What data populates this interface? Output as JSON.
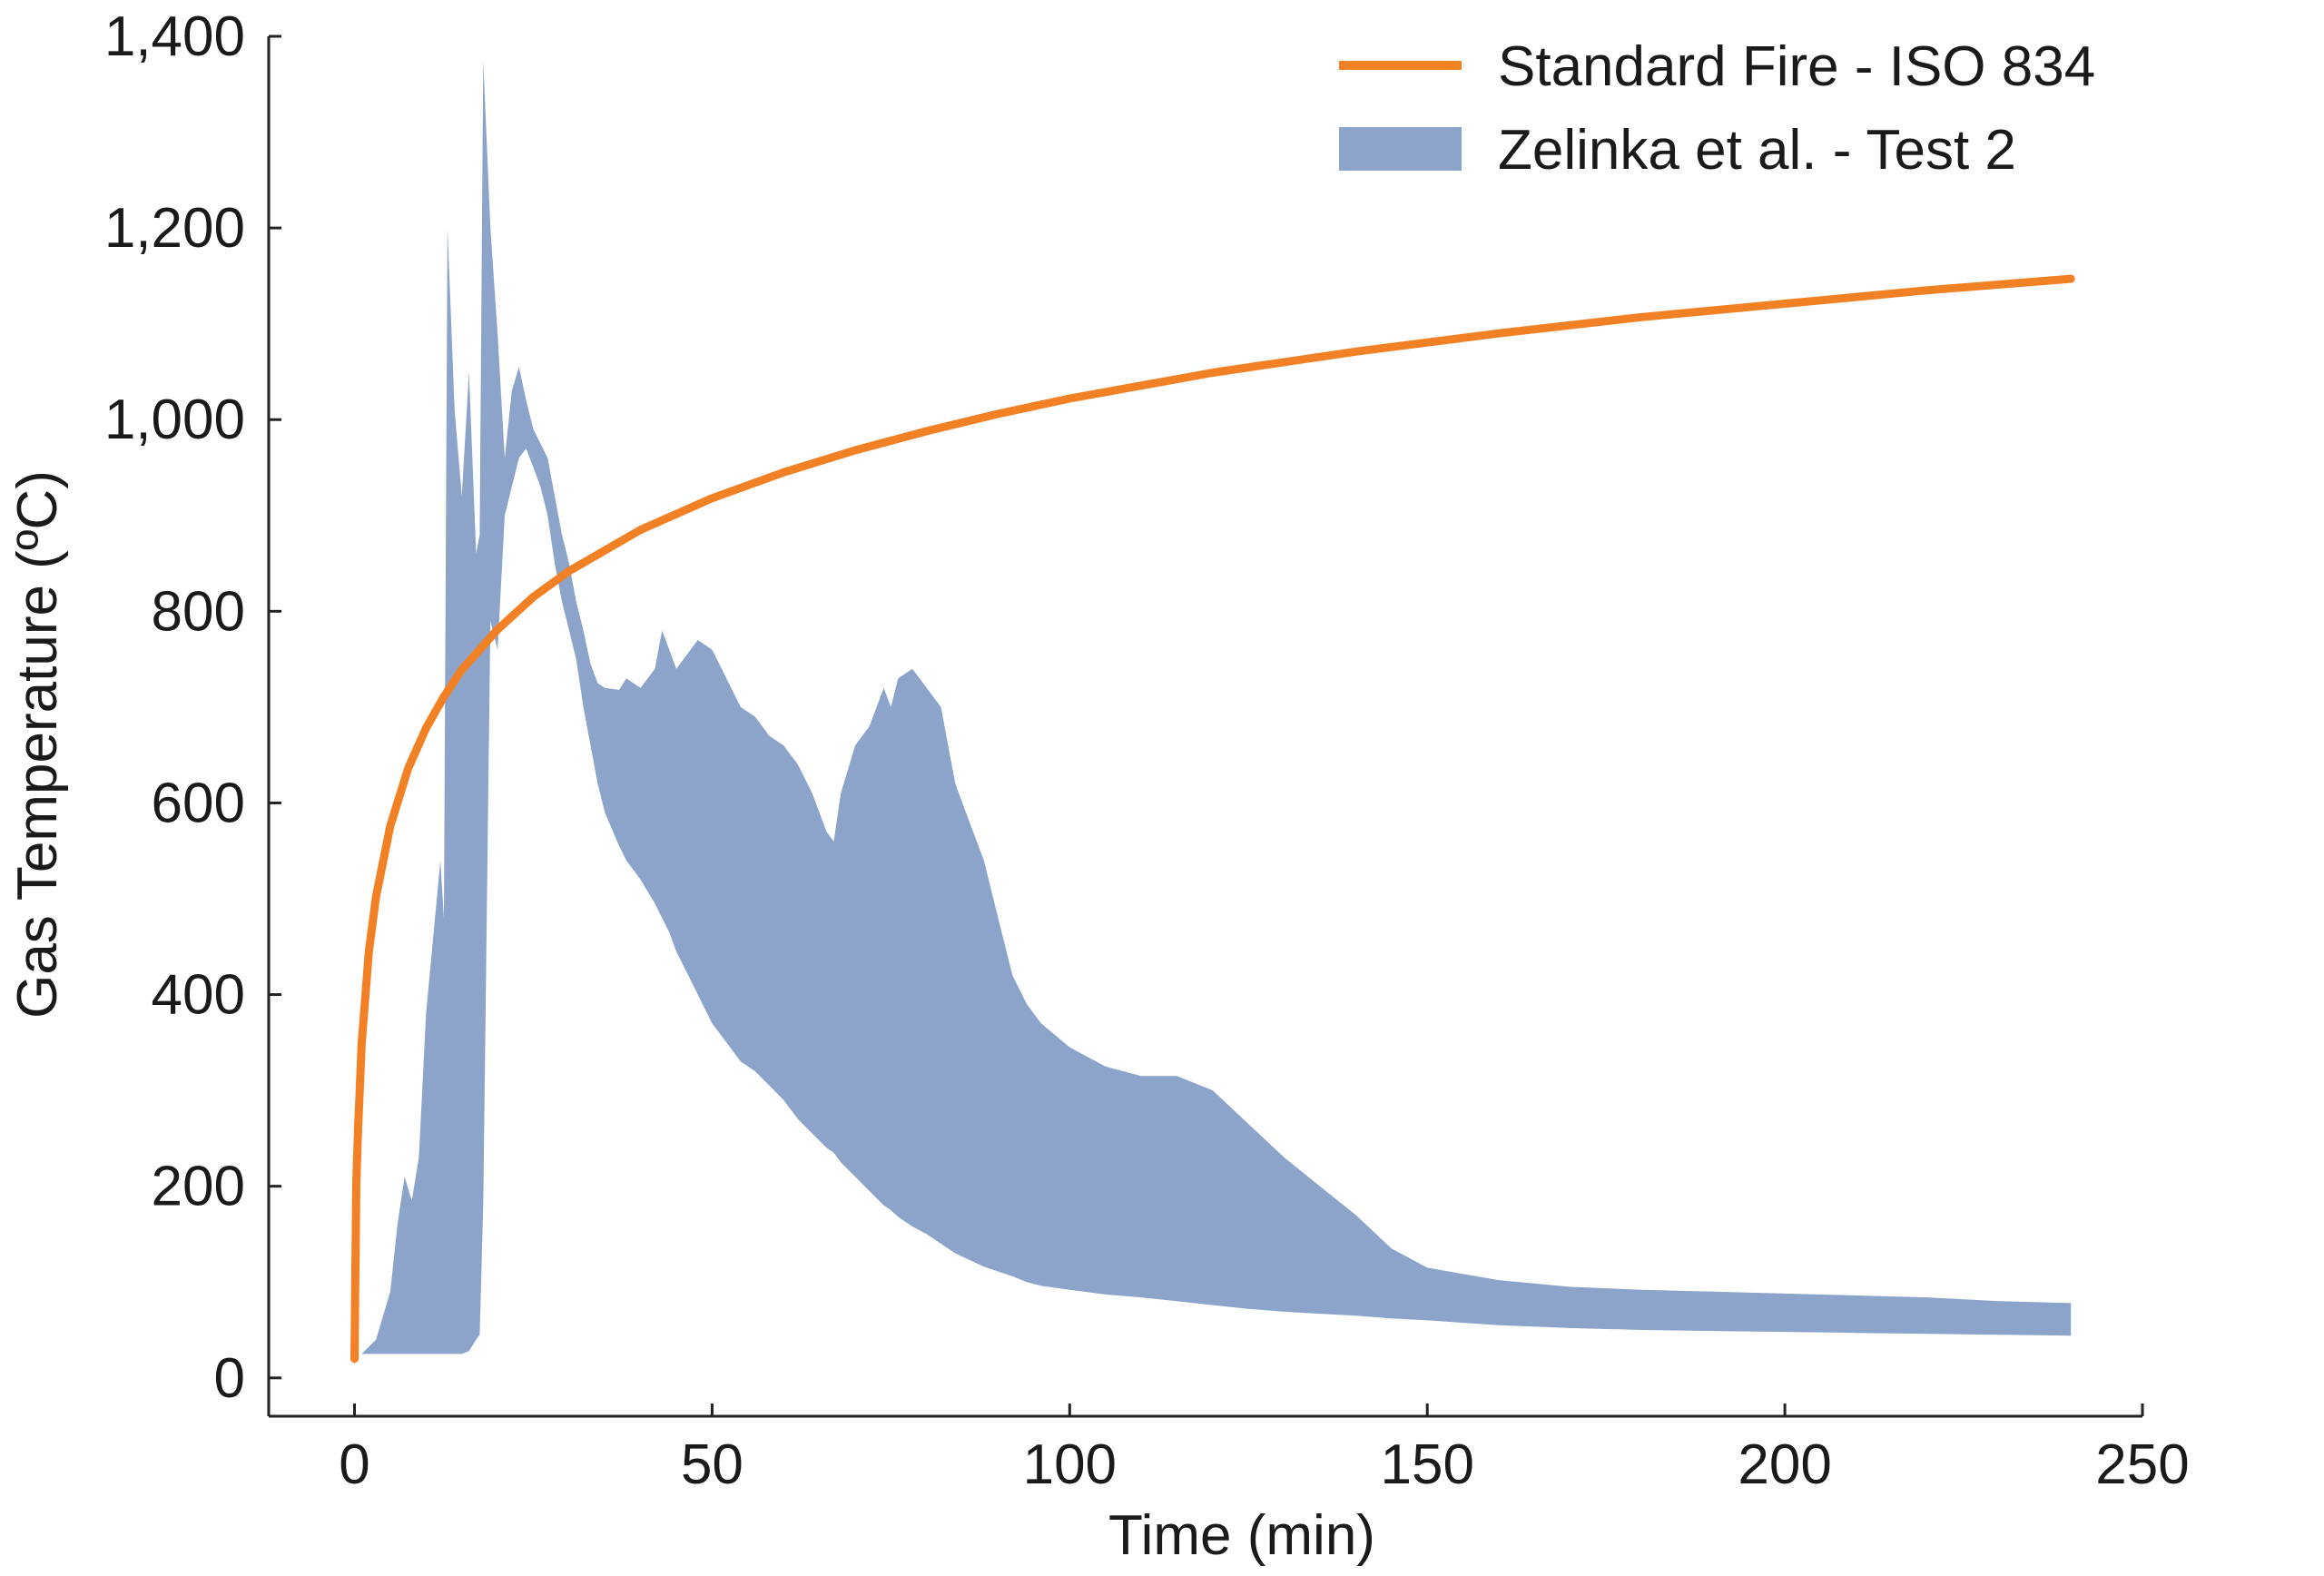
{
  "chart_data": {
    "type": "line",
    "xlabel": "Time (min)",
    "ylabel": "Gas Temperature (ºC)",
    "xlim": [
      -12,
      250
    ],
    "ylim": [
      -40,
      1400
    ],
    "xticks": [
      0,
      50,
      100,
      150,
      200,
      250
    ],
    "yticks": [
      0,
      200,
      400,
      600,
      800,
      1000,
      1200,
      1400
    ],
    "xtick_labels": [
      "0",
      "50",
      "100",
      "150",
      "200",
      "250"
    ],
    "ytick_labels": [
      "0",
      "200",
      "400",
      "600",
      "800",
      "1,000",
      "1,200",
      "1,400"
    ],
    "grid": false,
    "legend_position": "top-right",
    "colors": {
      "iso": "#f28126",
      "band": "#8ca4ca",
      "axis": "#222222"
    },
    "series": [
      {
        "name": "Standard Fire - ISO 834",
        "kind": "curve",
        "x": [
          0,
          0.25,
          0.5,
          1,
          2,
          3,
          5,
          7.5,
          10,
          12.5,
          15,
          20,
          25,
          30,
          40,
          50,
          60,
          70,
          80,
          90,
          100,
          120,
          140,
          160,
          180,
          200,
          220,
          240
        ],
        "y": [
          20,
          204,
          261,
          349,
          445,
          502,
          576,
          636,
          678,
          711,
          739,
          781,
          815,
          842,
          885,
          918,
          945,
          968,
          988,
          1006,
          1022,
          1049,
          1071,
          1090,
          1107,
          1121,
          1135,
          1147
        ]
      },
      {
        "name": "Zelinka et al. - Test 2",
        "kind": "band",
        "x": [
          1,
          3,
          5,
          6,
          7,
          8,
          9,
          10,
          11,
          12,
          12.5,
          13,
          14,
          15,
          16,
          17,
          17.5,
          18,
          19,
          20,
          21,
          22,
          23,
          24,
          25,
          26,
          27,
          28,
          29,
          30,
          31,
          32,
          33,
          34,
          35,
          37,
          38,
          40,
          42,
          43,
          44,
          45,
          46,
          48,
          50,
          52,
          54,
          56,
          58,
          60,
          62,
          64,
          66,
          67,
          68,
          70,
          72,
          74,
          75,
          76,
          78,
          80,
          82,
          84,
          86,
          88,
          90,
          92,
          94,
          96,
          100,
          105,
          110,
          115,
          120,
          125,
          130,
          135,
          140,
          145,
          150,
          160,
          170,
          180,
          190,
          200,
          210,
          220,
          230,
          240
        ],
        "upper": [
          25,
          40,
          90,
          160,
          210,
          185,
          230,
          380,
          460,
          540,
          480,
          1200,
          1010,
          920,
          1050,
          860,
          880,
          1375,
          1200,
          1090,
          960,
          1030,
          1055,
          1020,
          990,
          975,
          960,
          920,
          880,
          850,
          810,
          780,
          745,
          725,
          720,
          718,
          730,
          720,
          740,
          780,
          760,
          740,
          750,
          770,
          760,
          730,
          700,
          690,
          670,
          660,
          640,
          610,
          570,
          560,
          610,
          660,
          680,
          720,
          700,
          730,
          740,
          720,
          700,
          620,
          580,
          540,
          480,
          420,
          390,
          370,
          345,
          325,
          315,
          315,
          300,
          265,
          230,
          200,
          170,
          135,
          115,
          102,
          95,
          92,
          90,
          88,
          86,
          84,
          80,
          78
        ],
        "lower": [
          25,
          25,
          25,
          25,
          25,
          25,
          25,
          25,
          25,
          25,
          25,
          25,
          25,
          25,
          28,
          40,
          45,
          180,
          790,
          760,
          900,
          930,
          960,
          970,
          950,
          930,
          900,
          850,
          810,
          780,
          750,
          700,
          660,
          620,
          590,
          555,
          540,
          520,
          495,
          480,
          465,
          445,
          430,
          400,
          370,
          350,
          330,
          320,
          305,
          290,
          270,
          255,
          240,
          235,
          225,
          210,
          195,
          180,
          175,
          168,
          158,
          150,
          140,
          130,
          123,
          116,
          111,
          106,
          100,
          96,
          92,
          87,
          84,
          80,
          76,
          72,
          69,
          67,
          65,
          62,
          60,
          55,
          52,
          50,
          49,
          48,
          47,
          46,
          45,
          44
        ]
      }
    ]
  }
}
